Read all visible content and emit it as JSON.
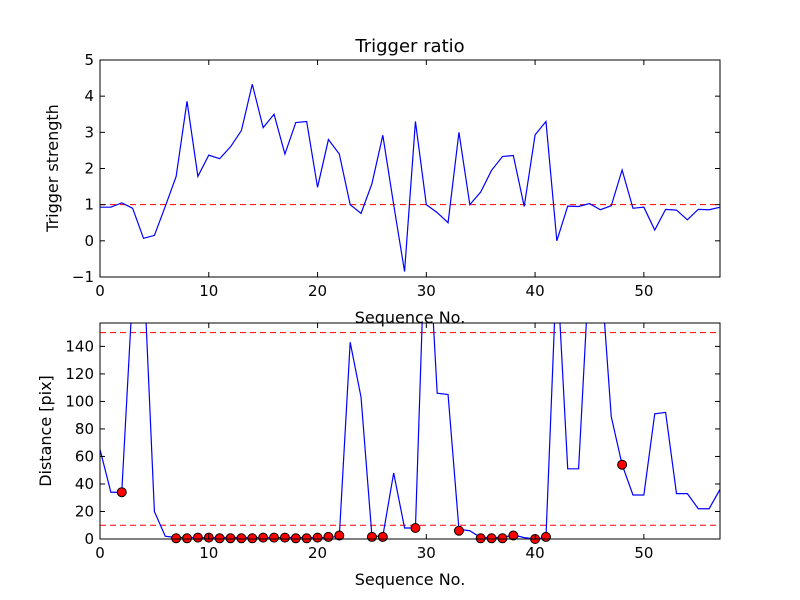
{
  "chart_data": [
    {
      "type": "line",
      "title": "Trigger ratio",
      "xlabel": "Sequence No.",
      "ylabel": "Trigger strength",
      "xlim": [
        0,
        57
      ],
      "ylim": [
        -1,
        5
      ],
      "xticks": [
        0,
        10,
        20,
        30,
        40,
        50
      ],
      "yticks": [
        -1,
        0,
        1,
        2,
        3,
        4,
        5
      ],
      "xtick_labels": [
        "0",
        "10",
        "20",
        "30",
        "40",
        "50"
      ],
      "ytick_labels": [
        "−1",
        "0",
        "1",
        "2",
        "3",
        "4",
        "5"
      ],
      "grid": false,
      "series": [
        {
          "color": "#0000ff",
          "x": [
            0,
            1,
            2,
            3,
            4,
            5,
            6,
            7,
            8,
            9,
            10,
            11,
            12,
            13,
            14,
            15,
            16,
            17,
            18,
            19,
            20,
            21,
            22,
            23,
            24,
            25,
            26,
            27,
            28,
            29,
            30,
            31,
            32,
            33,
            34,
            35,
            36,
            37,
            38,
            39,
            40,
            41,
            42,
            43,
            44,
            45,
            46,
            47,
            48,
            49,
            50,
            51,
            52,
            53,
            54,
            55,
            56,
            57
          ],
          "y": [
            0.93,
            0.93,
            1.05,
            0.9,
            0.07,
            0.15,
            0.95,
            1.78,
            3.86,
            1.78,
            2.37,
            2.27,
            2.6,
            3.05,
            4.33,
            3.13,
            3.5,
            2.4,
            3.27,
            3.3,
            1.48,
            2.8,
            2.4,
            1.0,
            0.76,
            1.58,
            2.92,
            1.0,
            -0.85,
            3.3,
            1.0,
            0.78,
            0.5,
            3.0,
            1.0,
            1.35,
            1.95,
            2.33,
            2.36,
            0.95,
            2.93,
            3.3,
            0.0,
            0.96,
            0.95,
            1.03,
            0.86,
            0.97,
            1.96,
            0.9,
            0.93,
            0.3,
            0.87,
            0.85,
            0.58,
            0.87,
            0.86,
            0.93
          ]
        }
      ],
      "reference_lines": [
        {
          "y": 1.0,
          "color": "#ff0000",
          "style": "dashed"
        }
      ]
    },
    {
      "type": "line",
      "title": "",
      "xlabel": "Sequence No.",
      "ylabel": "Distance [pix]",
      "xlim": [
        0,
        57
      ],
      "ylim": [
        0,
        157
      ],
      "xticks": [
        0,
        10,
        20,
        30,
        40,
        50
      ],
      "yticks": [
        0,
        20,
        40,
        60,
        80,
        100,
        120,
        140
      ],
      "xtick_labels": [
        "0",
        "10",
        "20",
        "30",
        "40",
        "50"
      ],
      "ytick_labels": [
        "0",
        "20",
        "40",
        "60",
        "80",
        "100",
        "120",
        "140"
      ],
      "grid": false,
      "series": [
        {
          "color": "#0000ff",
          "x": [
            0,
            1,
            2,
            3,
            4,
            5,
            6,
            7,
            8,
            9,
            10,
            11,
            12,
            13,
            14,
            15,
            16,
            17,
            18,
            19,
            20,
            21,
            22,
            23,
            24,
            25,
            26,
            27,
            28,
            29,
            30,
            31,
            32,
            33,
            34,
            35,
            36,
            37,
            38,
            39,
            40,
            41,
            42,
            43,
            44,
            45,
            46,
            47,
            48,
            49,
            50,
            51,
            52,
            53,
            54,
            55,
            56,
            57
          ],
          "y": [
            65,
            34,
            34,
            180,
            200,
            20,
            2,
            1,
            1,
            1,
            1,
            1,
            1,
            1,
            1,
            1,
            1,
            1,
            1,
            1,
            1,
            1,
            2,
            143,
            103,
            2,
            2,
            48,
            8,
            8,
            250,
            106,
            105,
            7,
            6,
            1,
            1,
            1,
            3,
            1,
            0,
            1,
            200,
            51,
            51,
            200,
            200,
            89,
            54,
            32,
            32,
            91,
            92,
            33,
            33,
            22,
            22,
            36
          ]
        },
        {
          "color": "#ff0000",
          "marker": "circle",
          "x": [
            2,
            7,
            8,
            9,
            10,
            11,
            12,
            13,
            14,
            15,
            16,
            17,
            18,
            19,
            20,
            21,
            22,
            25,
            26,
            29,
            33,
            35,
            36,
            37,
            38,
            40,
            41,
            48
          ],
          "y": [
            34,
            0.5,
            0.5,
            1,
            1,
            0.5,
            0.5,
            0.5,
            0.5,
            1,
            1,
            1,
            0.5,
            0.5,
            1,
            1.5,
            2.5,
            1.5,
            1.5,
            8,
            6,
            0.5,
            0.5,
            0.5,
            2.5,
            0,
            1.5,
            54
          ]
        }
      ],
      "reference_lines": [
        {
          "y": 150,
          "color": "#ff0000",
          "style": "dashed"
        },
        {
          "y": 10,
          "color": "#ff0000",
          "style": "dashed"
        }
      ]
    }
  ]
}
